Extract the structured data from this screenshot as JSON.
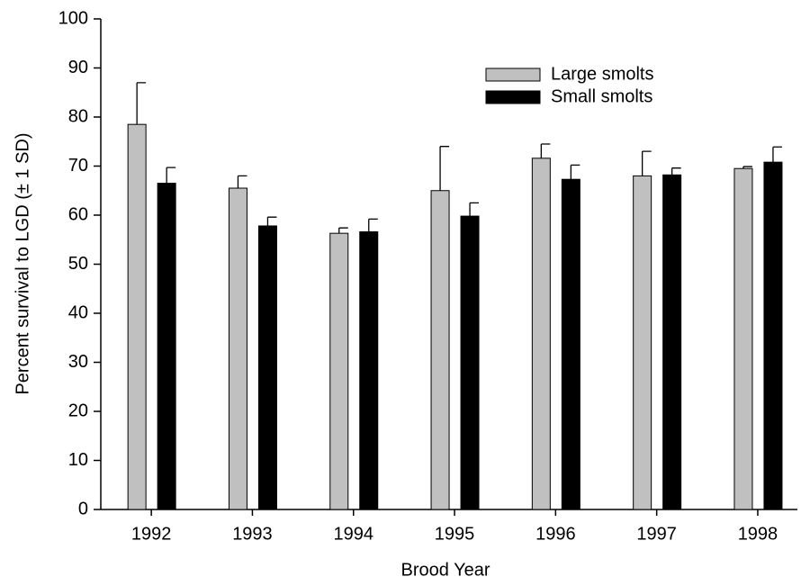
{
  "chart_data": {
    "type": "bar",
    "x_label": "Brood Year",
    "y_label": "Percent survival to LGD (± 1 SD)",
    "categories": [
      "1992",
      "1993",
      "1994",
      "1995",
      "1996",
      "1997",
      "1998"
    ],
    "series": [
      {
        "name": "Large smolts",
        "color": "#c0c0c0",
        "values": [
          78.5,
          65.5,
          56.3,
          65,
          71.6,
          68,
          69.5
        ],
        "errors": [
          8.5,
          2.5,
          1.1,
          9,
          2.9,
          5,
          0.4
        ]
      },
      {
        "name": "Small smolts",
        "color": "#000000",
        "values": [
          66.5,
          57.8,
          56.6,
          59.8,
          67.3,
          68.2,
          70.8
        ],
        "errors": [
          3.2,
          1.8,
          2.6,
          2.7,
          2.9,
          1.4,
          3.1
        ]
      }
    ],
    "ylim": [
      0,
      100
    ],
    "yticks": [
      0,
      10,
      20,
      30,
      40,
      50,
      60,
      70,
      80,
      90,
      100
    ],
    "legend": "upper right"
  }
}
